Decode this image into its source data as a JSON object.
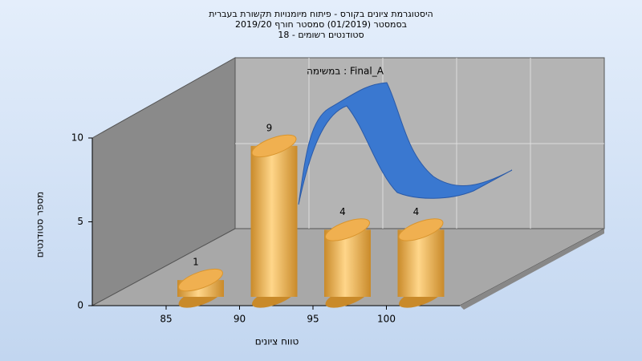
{
  "chart_data": {
    "type": "bar3d",
    "title": [
      "היסטוגרמת ציונים בקורס - פיתוח מיומנויות תקשורת בעברית",
      "בסמסטר  (01/2019)  סמסטר חורף 2019/20",
      "סטודנטים רשומים - 18"
    ],
    "annotation": "במשימה : Final_A",
    "x_label": "טווח ציונים",
    "y_label": "מספר סטודנטים",
    "categories": [
      "85",
      "90",
      "95",
      "100"
    ],
    "values": [
      1,
      9,
      4,
      4
    ],
    "color": "#f0b050",
    "ylim": [
      0,
      10
    ],
    "yticks": [
      0,
      5,
      10
    ]
  }
}
